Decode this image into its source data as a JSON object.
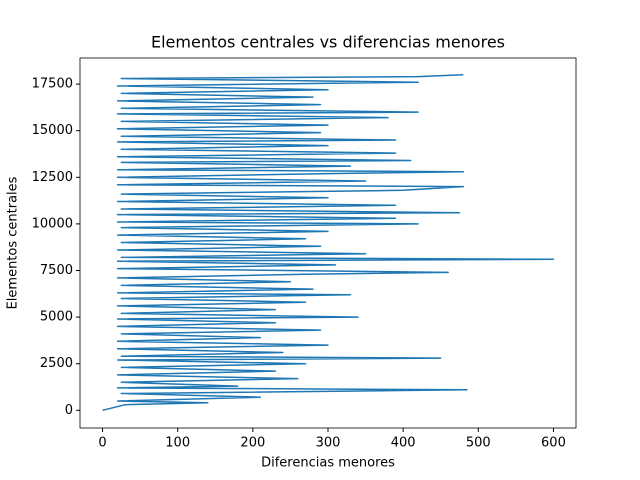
{
  "chart_data": {
    "type": "line",
    "title": "Elementos centrales vs diferencias menores",
    "x_label": "Diferencias menores",
    "y_label": "Elementos centrales",
    "color": "#1f77b4",
    "x": [
      0,
      30,
      140,
      20,
      210,
      25,
      485,
      20,
      180,
      25,
      260,
      20,
      230,
      25,
      270,
      20,
      450,
      25,
      240,
      20,
      300,
      20,
      210,
      25,
      290,
      20,
      230,
      20,
      340,
      25,
      230,
      20,
      270,
      25,
      330,
      20,
      280,
      25,
      250,
      20,
      270,
      460,
      20,
      310,
      20,
      600,
      25,
      350,
      20,
      290,
      25,
      270,
      20,
      300,
      25,
      420,
      20,
      390,
      20,
      475,
      25,
      390,
      20,
      300,
      25,
      400,
      480,
      20,
      350,
      20,
      300,
      480,
      20,
      330,
      25,
      410,
      20,
      390,
      25,
      300,
      20,
      390,
      25,
      290,
      20,
      300,
      25,
      380,
      20,
      420,
      25,
      290,
      20,
      280,
      25,
      300,
      20,
      420,
      25,
      420,
      480
    ],
    "values": [
      0,
      300,
      400,
      500,
      700,
      900,
      1100,
      1200,
      1300,
      1500,
      1700,
      1900,
      2100,
      2300,
      2500,
      2700,
      2800,
      2900,
      3100,
      3300,
      3500,
      3700,
      3900,
      4100,
      4300,
      4500,
      4700,
      4900,
      5000,
      5200,
      5400,
      5600,
      5800,
      6000,
      6200,
      6300,
      6500,
      6700,
      6900,
      7100,
      7300,
      7400,
      7600,
      7800,
      8000,
      8100,
      8200,
      8400,
      8600,
      8800,
      9000,
      9200,
      9400,
      9600,
      9800,
      10000,
      10100,
      10300,
      10500,
      10600,
      10800,
      11000,
      11200,
      11400,
      11600,
      11800,
      12000,
      12100,
      12300,
      12500,
      12700,
      12800,
      12900,
      13100,
      13300,
      13400,
      13600,
      13800,
      14000,
      14200,
      14400,
      14500,
      14700,
      14900,
      15100,
      15300,
      15500,
      15700,
      15900,
      16000,
      16200,
      16400,
      16600,
      16800,
      17000,
      17200,
      17400,
      17600,
      17800,
      17900,
      18000
    ],
    "xlim": [
      -30,
      630
    ],
    "ylim": [
      -950,
      18900
    ],
    "xticks": [
      0,
      100,
      200,
      300,
      400,
      500,
      600
    ],
    "yticks": [
      0,
      2500,
      5000,
      7500,
      10000,
      12500,
      15000,
      17500
    ]
  }
}
